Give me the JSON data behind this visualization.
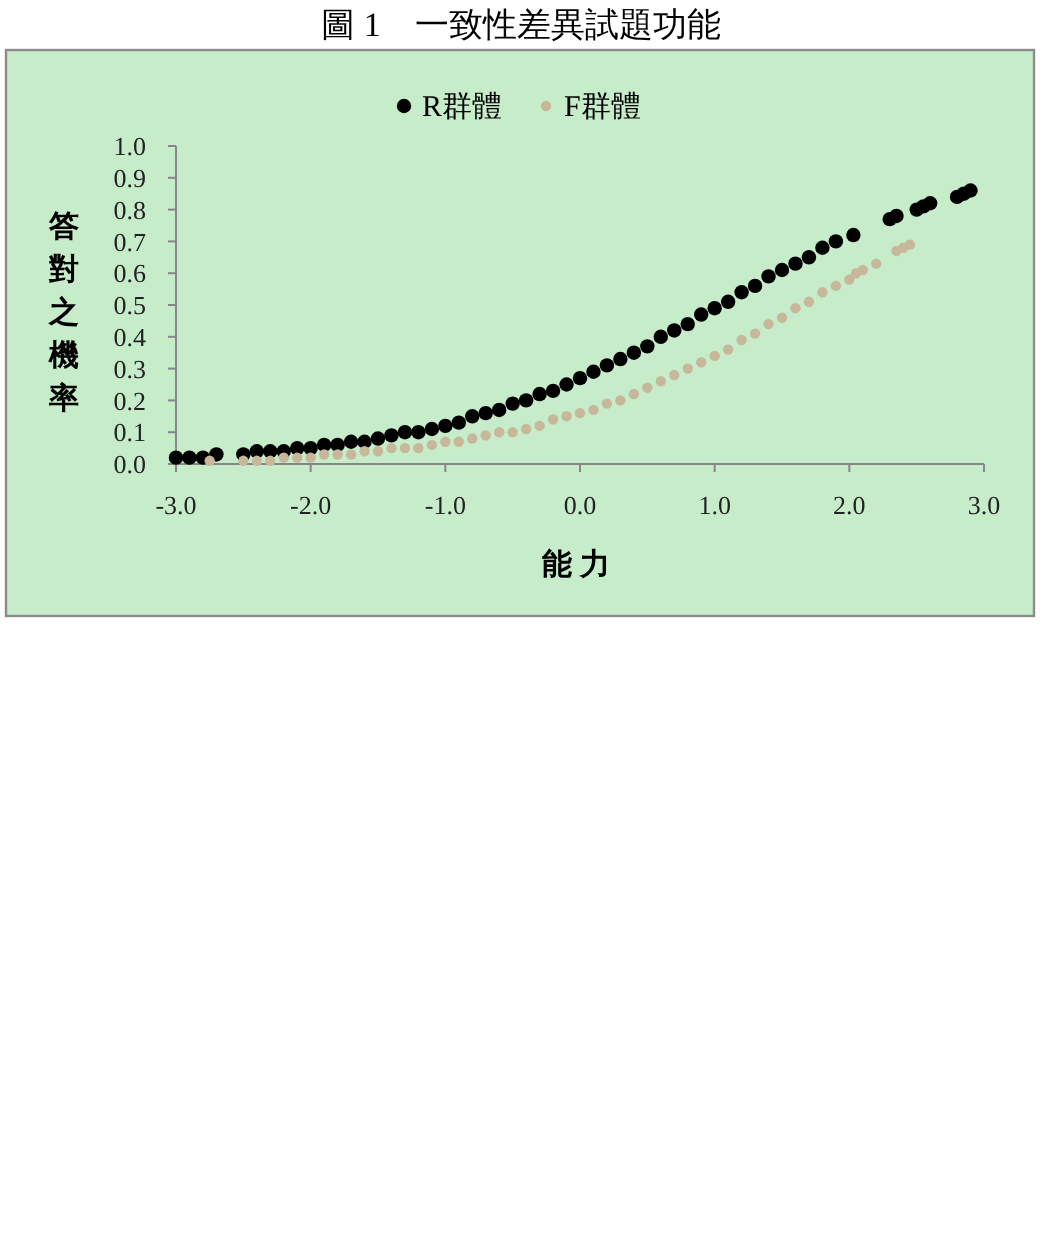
{
  "chart_data": {
    "type": "scatter",
    "title": "圖 1　一致性差異試題功能",
    "xlabel": "能力",
    "ylabel": "答對之機率",
    "xlim": [
      -3,
      3
    ],
    "xticks": [
      {
        "value": -3,
        "label": "-3.0"
      },
      {
        "value": -2,
        "label": "-2.0"
      },
      {
        "value": -1,
        "label": "-1.0"
      },
      {
        "value": 0,
        "label": "0.0"
      },
      {
        "value": 1,
        "label": "1.0"
      },
      {
        "value": 2,
        "label": "2.0"
      },
      {
        "value": 3,
        "label": "3.0"
      }
    ],
    "ylim": [
      0,
      1
    ],
    "yticks": [
      {
        "value": 0,
        "label": "0.0"
      },
      0.1,
      0.2,
      0.3,
      0.4,
      0.5,
      0.6,
      0.7,
      0.8,
      0.9,
      {
        "value": 1,
        "label": "1.0"
      }
    ],
    "legend": "top",
    "marker": "circle",
    "series": [
      {
        "name": "R群體",
        "color": "#000000",
        "x": [
          -3.0,
          -2.9,
          -2.8,
          -2.7,
          -2.5,
          -2.4,
          -2.3,
          -2.2,
          -2.1,
          -2.0,
          -1.9,
          -1.8,
          -1.7,
          -1.6,
          -1.5,
          -1.4,
          -1.3,
          -1.2,
          -1.1,
          -1.0,
          -0.9,
          -0.8,
          -0.7,
          -0.6,
          -0.5,
          -0.4,
          -0.3,
          -0.2,
          -0.1,
          0,
          0.1,
          0.2,
          0.3,
          0.4,
          0.5,
          0.6,
          0.7,
          0.8,
          0.9,
          1.0,
          1.1,
          1.2,
          1.3,
          1.4,
          1.5,
          1.6,
          1.7,
          1.8,
          1.9,
          2.03,
          2.3,
          2.35,
          2.5,
          2.55,
          2.6,
          2.8,
          2.85,
          2.9
        ],
        "values": [
          0.02,
          0.02,
          0.02,
          0.03,
          0.03,
          0.04,
          0.04,
          0.04,
          0.05,
          0.05,
          0.06,
          0.06,
          0.07,
          0.07,
          0.08,
          0.09,
          0.1,
          0.1,
          0.11,
          0.12,
          0.13,
          0.15,
          0.16,
          0.17,
          0.19,
          0.2,
          0.22,
          0.23,
          0.25,
          0.27,
          0.29,
          0.31,
          0.33,
          0.35,
          0.37,
          0.4,
          0.42,
          0.44,
          0.47,
          0.49,
          0.51,
          0.54,
          0.56,
          0.59,
          0.61,
          0.63,
          0.65,
          0.68,
          0.7,
          0.72,
          0.77,
          0.78,
          0.8,
          0.81,
          0.82,
          0.84,
          0.85,
          0.86
        ]
      },
      {
        "name": "F群體",
        "color": "#c8b89b",
        "x": [
          -2.75,
          -2.5,
          -2.4,
          -2.3,
          -2.2,
          -2.1,
          -2.0,
          -1.9,
          -1.8,
          -1.7,
          -1.6,
          -1.5,
          -1.4,
          -1.3,
          -1.2,
          -1.1,
          -1.0,
          -0.9,
          -0.8,
          -0.7,
          -0.6,
          -0.5,
          -0.4,
          -0.3,
          -0.2,
          -0.1,
          0,
          0.1,
          0.2,
          0.3,
          0.4,
          0.5,
          0.6,
          0.7,
          0.8,
          0.9,
          1.0,
          1.1,
          1.2,
          1.3,
          1.4,
          1.5,
          1.6,
          1.7,
          1.8,
          1.9,
          2.0,
          2.05,
          2.1,
          2.2,
          2.35,
          2.4,
          2.45
        ],
        "values": [
          0.01,
          0.01,
          0.01,
          0.01,
          0.02,
          0.02,
          0.02,
          0.03,
          0.03,
          0.03,
          0.04,
          0.04,
          0.05,
          0.05,
          0.05,
          0.06,
          0.07,
          0.07,
          0.08,
          0.09,
          0.1,
          0.1,
          0.11,
          0.12,
          0.14,
          0.15,
          0.16,
          0.17,
          0.19,
          0.2,
          0.22,
          0.24,
          0.26,
          0.28,
          0.3,
          0.32,
          0.34,
          0.36,
          0.39,
          0.41,
          0.44,
          0.46,
          0.49,
          0.51,
          0.54,
          0.56,
          0.58,
          0.6,
          0.61,
          0.63,
          0.67,
          0.68,
          0.69
        ]
      }
    ]
  }
}
